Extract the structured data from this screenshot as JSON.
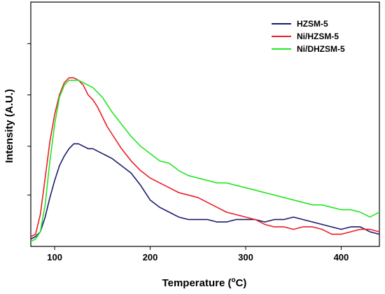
{
  "chart_data": {
    "type": "line",
    "title": "",
    "xlabel_prefix": "Temperature (",
    "xlabel_sup": "o",
    "xlabel_suffix": "C)",
    "ylabel": "Intensity (A.U.)",
    "xlim": [
      75,
      440
    ],
    "ylim": [
      0,
      1
    ],
    "x_ticks": [
      100,
      200,
      300,
      400
    ],
    "y_ticks": [
      0.21,
      0.41,
      0.62,
      0.83
    ],
    "y_tick_labels_shown": false,
    "grid": false,
    "legend_position": "top-right",
    "x": [
      75,
      80,
      85,
      90,
      95,
      100,
      105,
      110,
      115,
      120,
      125,
      130,
      135,
      140,
      145,
      150,
      155,
      160,
      170,
      180,
      190,
      200,
      210,
      220,
      230,
      240,
      250,
      260,
      270,
      280,
      290,
      300,
      310,
      320,
      330,
      340,
      350,
      360,
      370,
      380,
      390,
      400,
      410,
      420,
      430,
      440
    ],
    "series": [
      {
        "name": "HZSM-5",
        "color": "#1a1a6e",
        "values": [
          0.03,
          0.04,
          0.06,
          0.12,
          0.2,
          0.27,
          0.33,
          0.37,
          0.4,
          0.42,
          0.42,
          0.41,
          0.4,
          0.4,
          0.39,
          0.38,
          0.37,
          0.36,
          0.33,
          0.3,
          0.25,
          0.19,
          0.16,
          0.14,
          0.12,
          0.11,
          0.11,
          0.11,
          0.1,
          0.1,
          0.11,
          0.11,
          0.11,
          0.1,
          0.11,
          0.11,
          0.12,
          0.11,
          0.1,
          0.09,
          0.08,
          0.07,
          0.08,
          0.08,
          0.06,
          0.05
        ]
      },
      {
        "name": "Ni/HZSM-5",
        "color": "#ec1c24",
        "values": [
          0.04,
          0.05,
          0.13,
          0.28,
          0.43,
          0.54,
          0.62,
          0.67,
          0.69,
          0.69,
          0.68,
          0.66,
          0.62,
          0.6,
          0.57,
          0.53,
          0.49,
          0.46,
          0.4,
          0.35,
          0.31,
          0.28,
          0.26,
          0.24,
          0.22,
          0.21,
          0.2,
          0.18,
          0.16,
          0.14,
          0.13,
          0.12,
          0.11,
          0.09,
          0.08,
          0.08,
          0.07,
          0.08,
          0.08,
          0.07,
          0.05,
          0.05,
          0.06,
          0.07,
          0.07,
          0.06
        ]
      },
      {
        "name": "Ni/DHZSM-5",
        "color": "#22e622",
        "values": [
          0.02,
          0.03,
          0.06,
          0.17,
          0.35,
          0.5,
          0.61,
          0.66,
          0.68,
          0.68,
          0.68,
          0.67,
          0.66,
          0.65,
          0.63,
          0.61,
          0.58,
          0.55,
          0.5,
          0.45,
          0.41,
          0.38,
          0.35,
          0.34,
          0.31,
          0.29,
          0.28,
          0.27,
          0.26,
          0.26,
          0.25,
          0.24,
          0.23,
          0.22,
          0.21,
          0.2,
          0.19,
          0.18,
          0.17,
          0.17,
          0.16,
          0.15,
          0.15,
          0.14,
          0.12,
          0.14
        ]
      }
    ]
  }
}
